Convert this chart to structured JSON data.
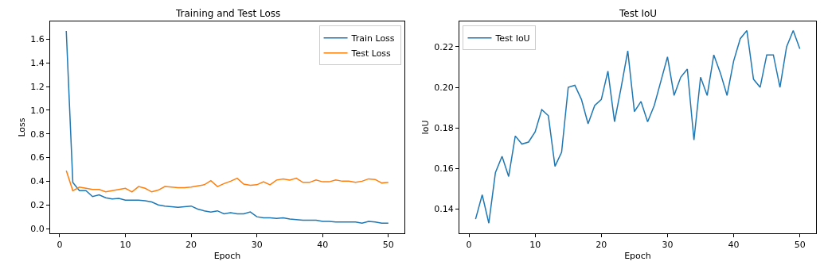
{
  "chart_data": [
    {
      "type": "line",
      "title": "Training and Test Loss",
      "xlabel": "Epoch",
      "ylabel": "Loss",
      "x": [
        1,
        2,
        3,
        4,
        5,
        6,
        7,
        8,
        9,
        10,
        11,
        12,
        13,
        14,
        15,
        16,
        17,
        18,
        19,
        20,
        21,
        22,
        23,
        24,
        25,
        26,
        27,
        28,
        29,
        30,
        31,
        32,
        33,
        34,
        35,
        36,
        37,
        38,
        39,
        40,
        41,
        42,
        43,
        44,
        45,
        46,
        47,
        48,
        49,
        50
      ],
      "xlim": [
        -1.45,
        52.45
      ],
      "xticks": [
        0,
        10,
        20,
        30,
        40,
        50
      ],
      "ylim": [
        -0.04,
        1.75
      ],
      "yticks": [
        {
          "value": 0,
          "label": "0.0"
        },
        {
          "value": 0.2,
          "label": "0.2"
        },
        {
          "value": 0.4,
          "label": "0.4"
        },
        {
          "value": 0.6,
          "label": "0.6"
        },
        {
          "value": 0.8,
          "label": "0.8"
        },
        {
          "value": 1,
          "label": "1.0"
        },
        {
          "value": 1.2,
          "label": "1.2"
        },
        {
          "value": 1.4,
          "label": "1.4"
        },
        {
          "value": 1.6,
          "label": "1.6"
        }
      ],
      "legend": "top right",
      "marker": "none",
      "line_style": "solid",
      "series": [
        {
          "name": "Train Loss",
          "color": "#1f77b4",
          "values": [
            1.67,
            0.39,
            0.32,
            0.32,
            0.27,
            0.285,
            0.26,
            0.25,
            0.255,
            0.24,
            0.24,
            0.24,
            0.235,
            0.225,
            0.2,
            0.19,
            0.185,
            0.18,
            0.185,
            0.19,
            0.165,
            0.15,
            0.14,
            0.15,
            0.125,
            0.135,
            0.125,
            0.125,
            0.14,
            0.1,
            0.09,
            0.09,
            0.085,
            0.09,
            0.08,
            0.075,
            0.07,
            0.07,
            0.07,
            0.06,
            0.06,
            0.055,
            0.055,
            0.055,
            0.055,
            0.045,
            0.06,
            0.055,
            0.045,
            0.045
          ]
        },
        {
          "name": "Test Loss",
          "color": "#ff7f0e",
          "values": [
            0.49,
            0.32,
            0.35,
            0.34,
            0.33,
            0.33,
            0.31,
            0.32,
            0.33,
            0.34,
            0.31,
            0.355,
            0.34,
            0.31,
            0.325,
            0.355,
            0.35,
            0.345,
            0.345,
            0.35,
            0.36,
            0.37,
            0.405,
            0.355,
            0.38,
            0.4,
            0.425,
            0.375,
            0.365,
            0.37,
            0.395,
            0.37,
            0.41,
            0.42,
            0.41,
            0.425,
            0.39,
            0.39,
            0.41,
            0.395,
            0.395,
            0.41,
            0.4,
            0.4,
            0.39,
            0.4,
            0.42,
            0.415,
            0.385,
            0.39
          ]
        }
      ]
    },
    {
      "type": "line",
      "title": "Test IoU",
      "xlabel": "Epoch",
      "ylabel": "IoU",
      "x": [
        1,
        2,
        3,
        4,
        5,
        6,
        7,
        8,
        9,
        10,
        11,
        12,
        13,
        14,
        15,
        16,
        17,
        18,
        19,
        20,
        21,
        22,
        23,
        24,
        25,
        26,
        27,
        28,
        29,
        30,
        31,
        32,
        33,
        34,
        35,
        36,
        37,
        38,
        39,
        40,
        41,
        42,
        43,
        44,
        45,
        46,
        47,
        48,
        49,
        50
      ],
      "xlim": [
        -1.45,
        52.45
      ],
      "xticks": [
        0,
        10,
        20,
        30,
        40,
        50
      ],
      "ylim": [
        0.128,
        0.2325
      ],
      "yticks": [
        0.14,
        0.16,
        0.18,
        {
          "value": 0.2,
          "label": "0.20"
        },
        0.22
      ],
      "legend": "top left",
      "marker": "none",
      "line_style": "solid",
      "series": [
        {
          "name": "Test IoU",
          "color": "#1f77b4",
          "values": [
            0.135,
            0.147,
            0.133,
            0.158,
            0.166,
            0.156,
            0.176,
            0.172,
            0.173,
            0.178,
            0.189,
            0.186,
            0.161,
            0.168,
            0.2,
            0.201,
            0.194,
            0.182,
            0.191,
            0.194,
            0.208,
            0.183,
            0.2,
            0.218,
            0.188,
            0.193,
            0.183,
            0.191,
            0.203,
            0.215,
            0.196,
            0.205,
            0.209,
            0.174,
            0.205,
            0.196,
            0.216,
            0.207,
            0.196,
            0.213,
            0.224,
            0.228,
            0.204,
            0.2,
            0.216,
            0.216,
            0.2,
            0.22,
            0.228,
            0.219
          ]
        }
      ]
    }
  ]
}
